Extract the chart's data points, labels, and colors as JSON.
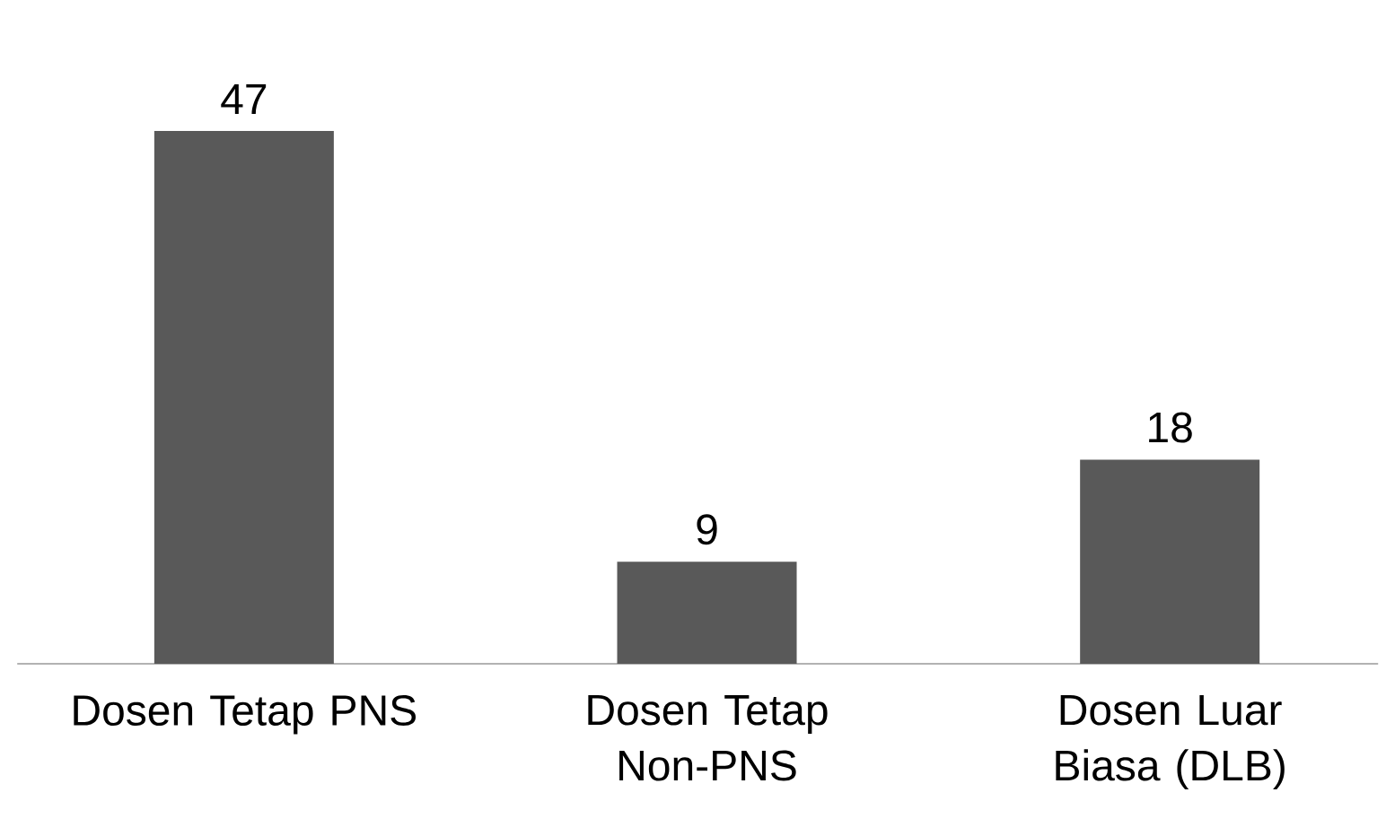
{
  "chart_data": {
    "type": "bar",
    "categories": [
      "Dosen Tetap PNS",
      "Dosen Tetap Non-PNS",
      "Dosen Luar Biasa (DLB)"
    ],
    "values": [
      47,
      9,
      18
    ],
    "color": "#595959",
    "data_labels": true
  }
}
